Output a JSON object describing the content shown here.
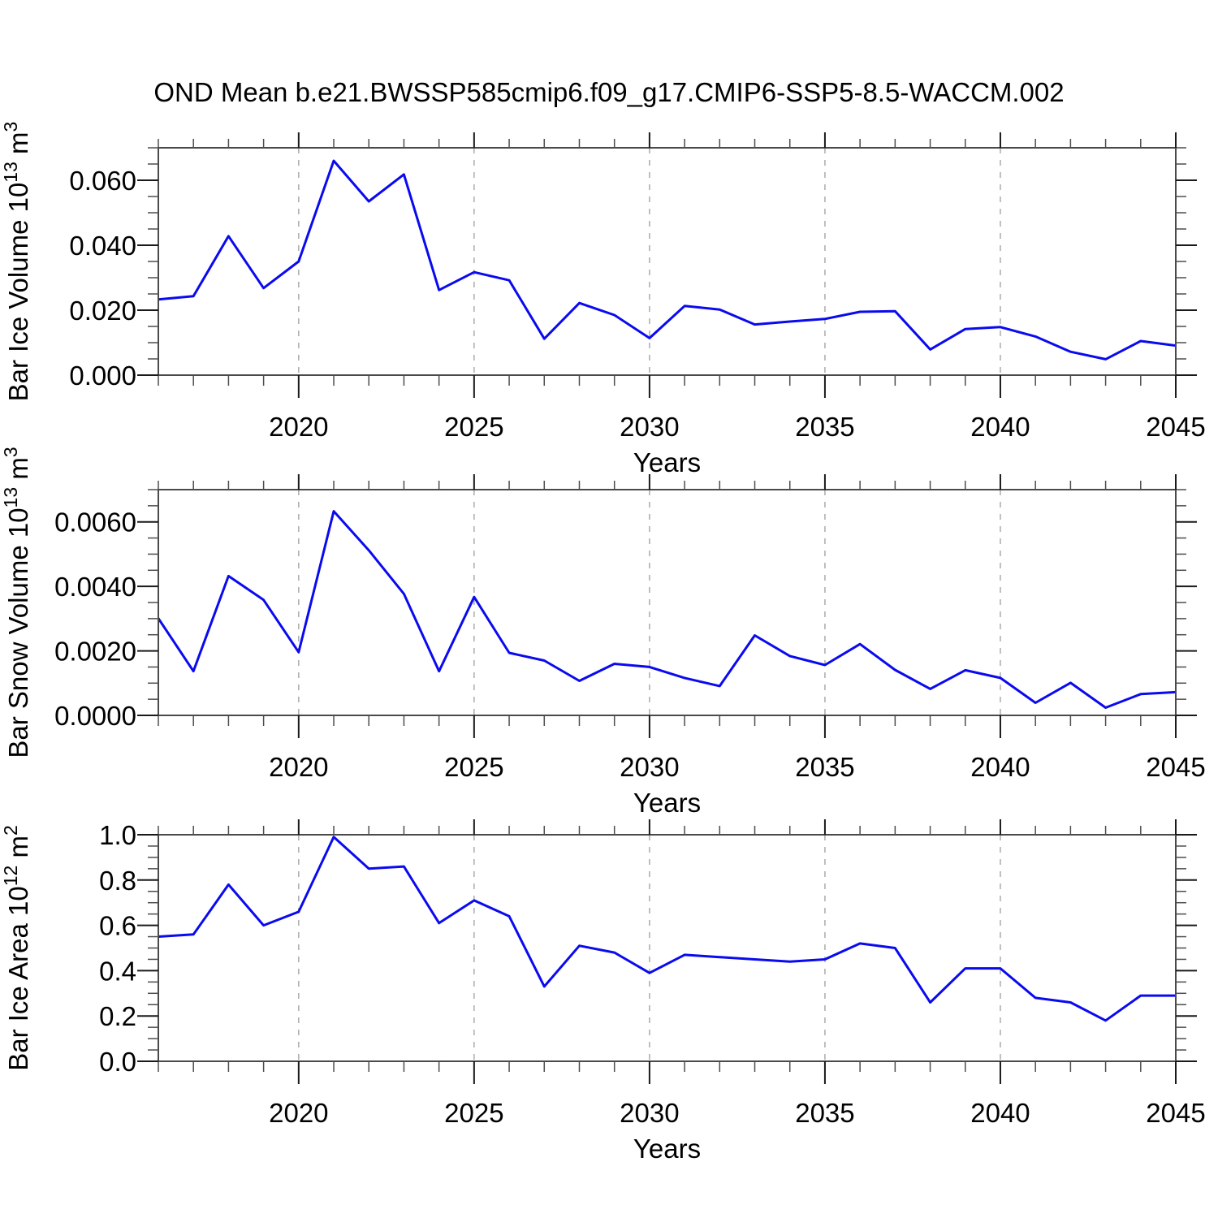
{
  "title": "OND Mean b.e21.BWSSP585cmip6.f09_g17.CMIP6-SSP5-8.5-WACCM.002",
  "colors": {
    "line": "#0a0aef",
    "frame": "#4a4a4a",
    "major_tick": "#1a1a1a",
    "minor_tick": "#4d4d4d",
    "grid": "#ababab",
    "text": "#000000",
    "background": "#ffffff"
  },
  "chart_data": [
    {
      "type": "line",
      "ylabel": "Bar Ice Volume 10^13 m^3",
      "ylabel_segments": [
        {
          "t": "Bar Ice Volume 10"
        },
        {
          "t": "13",
          "sup": true
        },
        {
          "t": " m"
        },
        {
          "t": "3",
          "sup": true
        }
      ],
      "xlabel": "Years",
      "x": [
        2016,
        2017,
        2018,
        2019,
        2020,
        2021,
        2022,
        2023,
        2024,
        2025,
        2026,
        2027,
        2028,
        2029,
        2030,
        2031,
        2032,
        2033,
        2034,
        2035,
        2036,
        2037,
        2038,
        2039,
        2040,
        2041,
        2042,
        2043,
        2044,
        2045
      ],
      "values": [
        0.0233,
        0.0243,
        0.0428,
        0.0268,
        0.035,
        0.066,
        0.0535,
        0.0618,
        0.0262,
        0.0317,
        0.0292,
        0.0112,
        0.0222,
        0.0185,
        0.0114,
        0.0213,
        0.0202,
        0.0156,
        0.0165,
        0.0173,
        0.0195,
        0.0197,
        0.0079,
        0.0142,
        0.0148,
        0.0119,
        0.0072,
        0.0049,
        0.0105,
        0.0091
      ],
      "xlim": [
        2016,
        2045
      ],
      "ylim": [
        0,
        0.07
      ],
      "xticks_major": [
        2020,
        2025,
        2030,
        2035,
        2040,
        2045
      ],
      "xtick_labels": [
        "2020",
        "2025",
        "2030",
        "2035",
        "2040",
        "2045"
      ],
      "xticks_minor_step": 1,
      "yticks_major": [
        0,
        0.02,
        0.04,
        0.06
      ],
      "ytick_labels": [
        "0.000",
        "0.020",
        "0.040",
        "0.060"
      ],
      "yticks_minor_step": 0.005,
      "gridlines_x": [
        2020,
        2025,
        2030,
        2035,
        2040
      ],
      "grid": "dashed-vertical",
      "legend": "none"
    },
    {
      "type": "line",
      "ylabel": "Bar Snow Volume 10^13 m^3",
      "ylabel_segments": [
        {
          "t": "Bar Snow Volume 10"
        },
        {
          "t": "13",
          "sup": true
        },
        {
          "t": " m"
        },
        {
          "t": "3",
          "sup": true
        }
      ],
      "xlabel": "Years",
      "x": [
        2016,
        2017,
        2018,
        2019,
        2020,
        2021,
        2022,
        2023,
        2024,
        2025,
        2026,
        2027,
        2028,
        2029,
        2030,
        2031,
        2032,
        2033,
        2034,
        2035,
        2036,
        2037,
        2038,
        2039,
        2040,
        2041,
        2042,
        2043,
        2044,
        2045
      ],
      "values": [
        0.00301,
        0.00137,
        0.00432,
        0.00358,
        0.00196,
        0.00633,
        0.00512,
        0.00377,
        0.00137,
        0.00367,
        0.00194,
        0.0017,
        0.00107,
        0.0016,
        0.0015,
        0.00116,
        0.00091,
        0.00248,
        0.00184,
        0.00156,
        0.00221,
        0.00141,
        0.00082,
        0.0014,
        0.00116,
        0.00039,
        0.00101,
        0.00024,
        0.00066,
        0.00072
      ],
      "xlim": [
        2016,
        2045
      ],
      "ylim": [
        0,
        0.007
      ],
      "xticks_major": [
        2020,
        2025,
        2030,
        2035,
        2040,
        2045
      ],
      "xtick_labels": [
        "2020",
        "2025",
        "2030",
        "2035",
        "2040",
        "2045"
      ],
      "xticks_minor_step": 1,
      "yticks_major": [
        0,
        0.002,
        0.004,
        0.006
      ],
      "ytick_labels": [
        "0.0000",
        "0.0020",
        "0.0040",
        "0.0060"
      ],
      "yticks_minor_step": 0.0005,
      "gridlines_x": [
        2020,
        2025,
        2030,
        2035,
        2040
      ],
      "grid": "dashed-vertical",
      "legend": "none"
    },
    {
      "type": "line",
      "ylabel": "Bar Ice Area 10^12 m^2",
      "ylabel_segments": [
        {
          "t": "Bar Ice Area 10"
        },
        {
          "t": "12",
          "sup": true
        },
        {
          "t": " m"
        },
        {
          "t": "2",
          "sup": true
        }
      ],
      "xlabel": "Years",
      "x": [
        2016,
        2017,
        2018,
        2019,
        2020,
        2021,
        2022,
        2023,
        2024,
        2025,
        2026,
        2027,
        2028,
        2029,
        2030,
        2031,
        2032,
        2033,
        2034,
        2035,
        2036,
        2037,
        2038,
        2039,
        2040,
        2041,
        2042,
        2043,
        2044,
        2045
      ],
      "values": [
        0.55,
        0.56,
        0.78,
        0.6,
        0.66,
        0.99,
        0.85,
        0.86,
        0.61,
        0.71,
        0.64,
        0.33,
        0.51,
        0.48,
        0.39,
        0.47,
        0.46,
        0.45,
        0.44,
        0.45,
        0.52,
        0.5,
        0.26,
        0.41,
        0.41,
        0.28,
        0.26,
        0.18,
        0.29,
        0.29
      ],
      "xlim": [
        2016,
        2045
      ],
      "ylim": [
        0,
        1.0
      ],
      "xticks_major": [
        2020,
        2025,
        2030,
        2035,
        2040,
        2045
      ],
      "xtick_labels": [
        "2020",
        "2025",
        "2030",
        "2035",
        "2040",
        "2045"
      ],
      "xticks_minor_step": 1,
      "yticks_major": [
        0,
        0.2,
        0.4,
        0.6,
        0.8,
        1.0
      ],
      "ytick_labels": [
        "0.0",
        "0.2",
        "0.4",
        "0.6",
        "0.8",
        "1.0"
      ],
      "yticks_minor_step": 0.05,
      "gridlines_x": [
        2020,
        2025,
        2030,
        2035,
        2040
      ],
      "grid": "dashed-vertical",
      "legend": "none"
    }
  ]
}
